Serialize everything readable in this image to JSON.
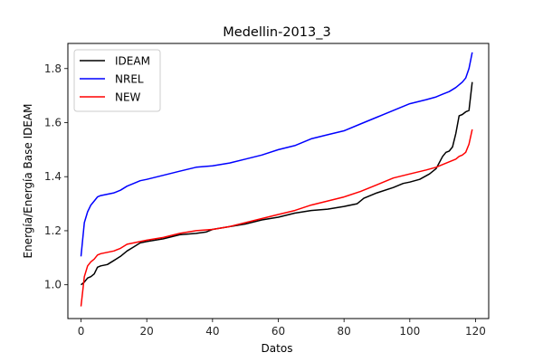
{
  "chart_data": {
    "type": "line",
    "title": "Medellin-2013_3",
    "xlabel": "Datos",
    "ylabel": "Energía/Energía Base IDEAM",
    "xlim": [
      -4,
      124
    ],
    "ylim": [
      0.875,
      1.893
    ],
    "xticks": [
      0,
      20,
      40,
      60,
      80,
      100,
      120
    ],
    "yticks": [
      1.0,
      1.2,
      1.4,
      1.6,
      1.8
    ],
    "ytick_labels": [
      "1.0",
      "1.2",
      "1.4",
      "1.6",
      "1.8"
    ],
    "grid": false,
    "legend_position": "top-left",
    "series": [
      {
        "name": "IDEAM",
        "color": "#000000",
        "x": [
          0,
          1,
          2,
          3,
          4,
          5,
          6,
          8,
          10,
          12,
          14,
          16,
          18,
          20,
          25,
          30,
          35,
          38,
          40,
          45,
          50,
          55,
          60,
          65,
          70,
          75,
          80,
          84,
          86,
          90,
          95,
          98,
          100,
          103,
          106,
          108,
          110,
          111,
          112,
          113,
          114,
          115,
          116,
          117,
          118,
          119
        ],
        "values": [
          1.0,
          1.01,
          1.025,
          1.03,
          1.04,
          1.065,
          1.07,
          1.075,
          1.09,
          1.105,
          1.125,
          1.14,
          1.155,
          1.16,
          1.17,
          1.185,
          1.19,
          1.195,
          1.205,
          1.215,
          1.225,
          1.24,
          1.25,
          1.265,
          1.275,
          1.28,
          1.29,
          1.3,
          1.32,
          1.34,
          1.36,
          1.375,
          1.38,
          1.39,
          1.41,
          1.43,
          1.475,
          1.49,
          1.495,
          1.51,
          1.56,
          1.625,
          1.63,
          1.64,
          1.645,
          1.75
        ]
      },
      {
        "name": "NREL",
        "color": "#0000ff",
        "x": [
          0,
          1,
          2,
          3,
          4,
          5,
          6,
          8,
          10,
          12,
          14,
          16,
          18,
          20,
          25,
          30,
          35,
          40,
          45,
          50,
          55,
          60,
          65,
          70,
          75,
          80,
          85,
          90,
          95,
          100,
          105,
          108,
          110,
          112,
          114,
          115,
          116,
          117,
          118,
          119
        ],
        "values": [
          1.105,
          1.23,
          1.27,
          1.295,
          1.31,
          1.325,
          1.33,
          1.335,
          1.34,
          1.35,
          1.365,
          1.375,
          1.385,
          1.39,
          1.405,
          1.42,
          1.435,
          1.44,
          1.45,
          1.465,
          1.48,
          1.5,
          1.515,
          1.54,
          1.555,
          1.57,
          1.595,
          1.62,
          1.645,
          1.67,
          1.685,
          1.695,
          1.705,
          1.715,
          1.73,
          1.74,
          1.75,
          1.765,
          1.8,
          1.86
        ]
      },
      {
        "name": "NEW",
        "color": "#ff0000",
        "x": [
          0,
          1,
          2,
          3,
          4,
          5,
          6,
          8,
          10,
          12,
          14,
          16,
          18,
          20,
          25,
          30,
          35,
          40,
          45,
          50,
          55,
          60,
          65,
          70,
          75,
          80,
          85,
          90,
          95,
          100,
          105,
          108,
          110,
          112,
          114,
          115,
          116,
          117,
          118,
          119
        ],
        "values": [
          0.92,
          1.03,
          1.07,
          1.085,
          1.095,
          1.11,
          1.115,
          1.12,
          1.125,
          1.135,
          1.15,
          1.155,
          1.16,
          1.165,
          1.175,
          1.19,
          1.2,
          1.205,
          1.215,
          1.23,
          1.245,
          1.26,
          1.275,
          1.295,
          1.31,
          1.325,
          1.345,
          1.37,
          1.395,
          1.41,
          1.425,
          1.435,
          1.445,
          1.455,
          1.465,
          1.475,
          1.48,
          1.49,
          1.52,
          1.575
        ]
      }
    ]
  }
}
